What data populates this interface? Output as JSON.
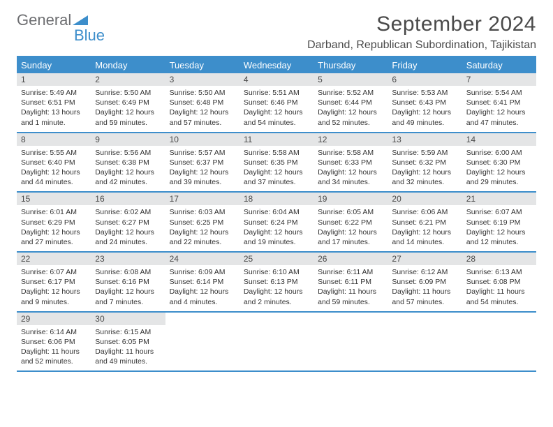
{
  "logo": {
    "text_main": "General",
    "text_sub": "Blue",
    "triangle_color": "#3d8ecb"
  },
  "title": "September 2024",
  "subtitle": "Darband, Republican Subordination, Tajikistan",
  "colors": {
    "header_bg": "#3d8ecb",
    "header_text": "#ffffff",
    "daynum_bg": "#e4e5e6",
    "text": "#333333",
    "rule": "#3d8ecb"
  },
  "dow": [
    "Sunday",
    "Monday",
    "Tuesday",
    "Wednesday",
    "Thursday",
    "Friday",
    "Saturday"
  ],
  "weeks": [
    [
      {
        "n": "1",
        "sunrise": "Sunrise: 5:49 AM",
        "sunset": "Sunset: 6:51 PM",
        "day": "Daylight: 13 hours and 1 minute."
      },
      {
        "n": "2",
        "sunrise": "Sunrise: 5:50 AM",
        "sunset": "Sunset: 6:49 PM",
        "day": "Daylight: 12 hours and 59 minutes."
      },
      {
        "n": "3",
        "sunrise": "Sunrise: 5:50 AM",
        "sunset": "Sunset: 6:48 PM",
        "day": "Daylight: 12 hours and 57 minutes."
      },
      {
        "n": "4",
        "sunrise": "Sunrise: 5:51 AM",
        "sunset": "Sunset: 6:46 PM",
        "day": "Daylight: 12 hours and 54 minutes."
      },
      {
        "n": "5",
        "sunrise": "Sunrise: 5:52 AM",
        "sunset": "Sunset: 6:44 PM",
        "day": "Daylight: 12 hours and 52 minutes."
      },
      {
        "n": "6",
        "sunrise": "Sunrise: 5:53 AM",
        "sunset": "Sunset: 6:43 PM",
        "day": "Daylight: 12 hours and 49 minutes."
      },
      {
        "n": "7",
        "sunrise": "Sunrise: 5:54 AM",
        "sunset": "Sunset: 6:41 PM",
        "day": "Daylight: 12 hours and 47 minutes."
      }
    ],
    [
      {
        "n": "8",
        "sunrise": "Sunrise: 5:55 AM",
        "sunset": "Sunset: 6:40 PM",
        "day": "Daylight: 12 hours and 44 minutes."
      },
      {
        "n": "9",
        "sunrise": "Sunrise: 5:56 AM",
        "sunset": "Sunset: 6:38 PM",
        "day": "Daylight: 12 hours and 42 minutes."
      },
      {
        "n": "10",
        "sunrise": "Sunrise: 5:57 AM",
        "sunset": "Sunset: 6:37 PM",
        "day": "Daylight: 12 hours and 39 minutes."
      },
      {
        "n": "11",
        "sunrise": "Sunrise: 5:58 AM",
        "sunset": "Sunset: 6:35 PM",
        "day": "Daylight: 12 hours and 37 minutes."
      },
      {
        "n": "12",
        "sunrise": "Sunrise: 5:58 AM",
        "sunset": "Sunset: 6:33 PM",
        "day": "Daylight: 12 hours and 34 minutes."
      },
      {
        "n": "13",
        "sunrise": "Sunrise: 5:59 AM",
        "sunset": "Sunset: 6:32 PM",
        "day": "Daylight: 12 hours and 32 minutes."
      },
      {
        "n": "14",
        "sunrise": "Sunrise: 6:00 AM",
        "sunset": "Sunset: 6:30 PM",
        "day": "Daylight: 12 hours and 29 minutes."
      }
    ],
    [
      {
        "n": "15",
        "sunrise": "Sunrise: 6:01 AM",
        "sunset": "Sunset: 6:29 PM",
        "day": "Daylight: 12 hours and 27 minutes."
      },
      {
        "n": "16",
        "sunrise": "Sunrise: 6:02 AM",
        "sunset": "Sunset: 6:27 PM",
        "day": "Daylight: 12 hours and 24 minutes."
      },
      {
        "n": "17",
        "sunrise": "Sunrise: 6:03 AM",
        "sunset": "Sunset: 6:25 PM",
        "day": "Daylight: 12 hours and 22 minutes."
      },
      {
        "n": "18",
        "sunrise": "Sunrise: 6:04 AM",
        "sunset": "Sunset: 6:24 PM",
        "day": "Daylight: 12 hours and 19 minutes."
      },
      {
        "n": "19",
        "sunrise": "Sunrise: 6:05 AM",
        "sunset": "Sunset: 6:22 PM",
        "day": "Daylight: 12 hours and 17 minutes."
      },
      {
        "n": "20",
        "sunrise": "Sunrise: 6:06 AM",
        "sunset": "Sunset: 6:21 PM",
        "day": "Daylight: 12 hours and 14 minutes."
      },
      {
        "n": "21",
        "sunrise": "Sunrise: 6:07 AM",
        "sunset": "Sunset: 6:19 PM",
        "day": "Daylight: 12 hours and 12 minutes."
      }
    ],
    [
      {
        "n": "22",
        "sunrise": "Sunrise: 6:07 AM",
        "sunset": "Sunset: 6:17 PM",
        "day": "Daylight: 12 hours and 9 minutes."
      },
      {
        "n": "23",
        "sunrise": "Sunrise: 6:08 AM",
        "sunset": "Sunset: 6:16 PM",
        "day": "Daylight: 12 hours and 7 minutes."
      },
      {
        "n": "24",
        "sunrise": "Sunrise: 6:09 AM",
        "sunset": "Sunset: 6:14 PM",
        "day": "Daylight: 12 hours and 4 minutes."
      },
      {
        "n": "25",
        "sunrise": "Sunrise: 6:10 AM",
        "sunset": "Sunset: 6:13 PM",
        "day": "Daylight: 12 hours and 2 minutes."
      },
      {
        "n": "26",
        "sunrise": "Sunrise: 6:11 AM",
        "sunset": "Sunset: 6:11 PM",
        "day": "Daylight: 11 hours and 59 minutes."
      },
      {
        "n": "27",
        "sunrise": "Sunrise: 6:12 AM",
        "sunset": "Sunset: 6:09 PM",
        "day": "Daylight: 11 hours and 57 minutes."
      },
      {
        "n": "28",
        "sunrise": "Sunrise: 6:13 AM",
        "sunset": "Sunset: 6:08 PM",
        "day": "Daylight: 11 hours and 54 minutes."
      }
    ],
    [
      {
        "n": "29",
        "sunrise": "Sunrise: 6:14 AM",
        "sunset": "Sunset: 6:06 PM",
        "day": "Daylight: 11 hours and 52 minutes."
      },
      {
        "n": "30",
        "sunrise": "Sunrise: 6:15 AM",
        "sunset": "Sunset: 6:05 PM",
        "day": "Daylight: 11 hours and 49 minutes."
      },
      null,
      null,
      null,
      null,
      null
    ]
  ]
}
